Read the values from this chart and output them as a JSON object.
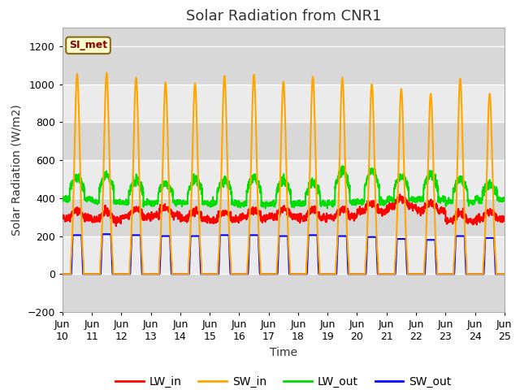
{
  "title": "Solar Radiation from CNR1",
  "xlabel": "Time",
  "ylabel": "Solar Radiation (W/m2)",
  "ylim": [
    -200,
    1300
  ],
  "xlim_days": [
    0,
    15
  ],
  "x_tick_labels": [
    "Jun\n10",
    "Jun\n11",
    "Jun\n12",
    "Jun\n13",
    "Jun\n14",
    "Jun\n15",
    "Jun\n16",
    "Jun\n17",
    "Jun\n18",
    "Jun\n19",
    "Jun\n20",
    "Jun\n21",
    "Jun\n22",
    "Jun\n23",
    "Jun\n24",
    "Jun\n25"
  ],
  "colors": {
    "LW_in": "#ff0000",
    "SW_in": "#ffa500",
    "LW_out": "#00dd00",
    "SW_out": "#0000ff"
  },
  "line_width": 1.5,
  "annotation_text": "SI_met",
  "annotation_color": "#8b0000",
  "annotation_bg": "#ffffcc",
  "annotation_border": "#8b6914",
  "background_color": "#ffffff",
  "band_colors": [
    "#d8d8d8",
    "#ebebeb"
  ],
  "grid_color": "#ffffff",
  "title_fontsize": 13,
  "axis_fontsize": 10,
  "tick_fontsize": 9,
  "yticks": [
    -200,
    0,
    200,
    400,
    600,
    800,
    1000,
    1200
  ]
}
